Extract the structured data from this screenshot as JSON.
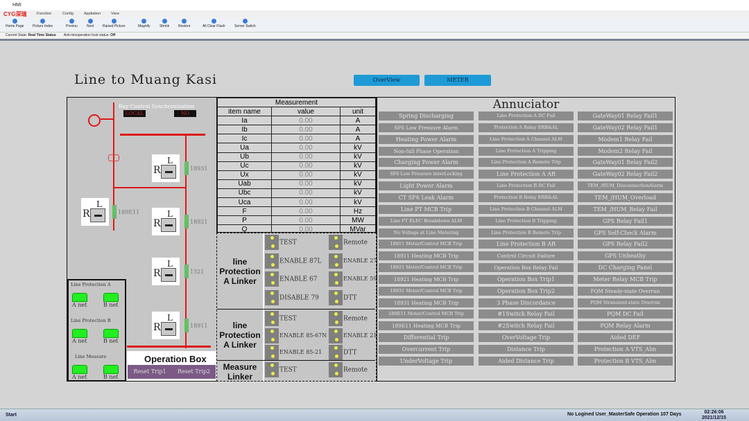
{
  "window": {
    "title": "HMI",
    "logo": "CYG深瑞"
  },
  "menu": [
    "Function",
    "Config",
    "Appliation",
    "View"
  ],
  "toolbar": [
    "Home Page",
    "Picture Index",
    "Previou",
    "Next",
    "Raised Picture",
    "Magnify",
    "Shrink",
    "Restore",
    "All Clear Flash",
    "Server Switch"
  ],
  "status": {
    "state_label": "Current State:",
    "state_value": "Real Time Status",
    "anti_label": "Anti-misoperation host status:",
    "anti_value": "Off"
  },
  "page": {
    "title": "Line to Muang Kasi",
    "overview": "OverView",
    "meter": "METER"
  },
  "bay": {
    "control_label": "Bay Control",
    "sync_label": "Synchronization",
    "control_value": "LOCAL",
    "sync_value": "NO"
  },
  "switches": [
    "18931",
    "189E11",
    "18921",
    "1521",
    "18911"
  ],
  "switch_letters": {
    "r": "R",
    "l": "L"
  },
  "network": {
    "groups": [
      "Line Protection A",
      "Line Protection B",
      "Line Measure"
    ],
    "a": "A net",
    "b": "B net"
  },
  "operation_box": {
    "title": "Operation Box",
    "reset1": "Reset Trip1",
    "reset2": "Reset Trip2"
  },
  "measurement": {
    "title": "Measurement",
    "headers": [
      "item name",
      "value",
      "unit"
    ],
    "rows": [
      [
        "Ia",
        "0.00",
        "A"
      ],
      [
        "Ib",
        "0.00",
        "A"
      ],
      [
        "Ic",
        "0.00",
        "A"
      ],
      [
        "Ua",
        "0.00",
        "kV"
      ],
      [
        "Ub",
        "0.00",
        "kV"
      ],
      [
        "Uc",
        "0.00",
        "kV"
      ],
      [
        "Ux",
        "0.00",
        "kV"
      ],
      [
        "Uab",
        "0.00",
        "kV"
      ],
      [
        "Ubc",
        "0.00",
        "kV"
      ],
      [
        "Uca",
        "0.00",
        "kV"
      ],
      [
        "F",
        "0.00",
        "Hz"
      ],
      [
        "P",
        "0.00",
        "MW"
      ],
      [
        "Q",
        "0.00",
        "MVar"
      ],
      [
        "Cos",
        "0.00",
        ""
      ]
    ]
  },
  "linkers": [
    {
      "label": "line Protection A Linker",
      "items": [
        [
          "TEST",
          "Remote"
        ],
        [
          "ENABLE 87L",
          "ENABLE 27"
        ],
        [
          "ENABLE 67",
          "ENABLE 59"
        ],
        [
          "DISABLE 79",
          "DTT"
        ]
      ]
    },
    {
      "label": "line Protection A Linker",
      "items": [
        [
          "TEST",
          "Remote"
        ],
        [
          "ENABLE 85-67N",
          "ENABLE 21"
        ],
        [
          "ENABLE 85-21",
          "DTT"
        ]
      ]
    },
    {
      "label": "Measure Linker",
      "items": [
        [
          "TEST",
          "Remote"
        ]
      ]
    }
  ],
  "annunciator": {
    "title": "Annuciator",
    "columns": [
      [
        "Spring Discharging",
        "SF6 Low Pressure Alarm",
        "Heating Power Alarm",
        "Non-full Phase Operation",
        "Charging Power Alarm",
        "SF6 Low Pressure interLocking",
        "Light Power Alarm",
        "CT SF6 Leak Alarm",
        "Line PT MCB Trip",
        "Line PT ELEC Breakdown ALM",
        "No Voltage at Line Metering",
        "18911 Moter/Control MCB Trip",
        "18911 Heating MCB Trip",
        "18921 Moter/Control MCB Trip",
        "18921 Heating MCB Trip",
        "18931 Moter/Control MCB Trip",
        "18931 Heating MCB Trip",
        "189E11 Moter/Control MCB Trip",
        "189E11 Heating MCB Trip",
        "Differential Trip",
        "Overcurrent Trip",
        "UnderVoltage Trip"
      ],
      [
        "Line Protection A DC Fail",
        "Protection A Relay ERR&AL",
        "Line Protection A Channel ALM",
        "Line Protection A Tripping",
        "Line Protection A Remote Trip",
        "Line Protection A AR",
        "Line Protection B DC Fail",
        "Protection B Relay ERR&AL",
        "Line Protection B Channel ALM",
        "Line Protection B Tripping",
        "Line Protection B Remote Trip",
        "Line Protection B AR",
        "Control Circuit Failure",
        "Operation Box Relay Fail",
        "Operation Box Trip1",
        "Operation Box Trip2",
        "3 Phase Discordance",
        "#1Switch Relay Fail",
        "#2Switch Relay Fail",
        "OverVoltage Trip",
        "Distance Trip",
        "Aided Distance Trip"
      ],
      [
        "GateWay01 Relay Fail1",
        "GateWay02 Relay Fail1",
        "Modem1 Relay Fail",
        "Modem2 Relay Fail",
        "GateWay01 Relay Fail2",
        "GateWay02 Relay Fail2",
        "TEM_/HUM_DisconnectionAlarm",
        "TEM_/HUM_Overload",
        "TEM_/HUM_Relay Fail",
        "GPS Relay Fail1",
        "GPS Self-Check Alarm",
        "GPS Relay Fail2",
        "GPS Unheathy",
        "DC Charging Panel",
        "Meter Relay MCB Trip",
        "PQM Steady-state Overrun",
        "PQM Stransient-state Overrun",
        "PQM DC Fail",
        "PQM Relay Alarm",
        "Aided DEF",
        "Protection A VTS_Alm",
        "Protection B VTS_Alm"
      ]
    ]
  },
  "taskbar": {
    "start": "Start",
    "user": "No Logined User_MasterSafe Operation 107 Days",
    "time": "02:26:06",
    "date": "2021/12/15"
  },
  "colors": {
    "busbar": "#e01818",
    "nav_button": "#1e9ad6",
    "alarm_inactive": "#8c8c8c",
    "net_ok": "#22ee22",
    "reset_button": "#7c5a86"
  }
}
